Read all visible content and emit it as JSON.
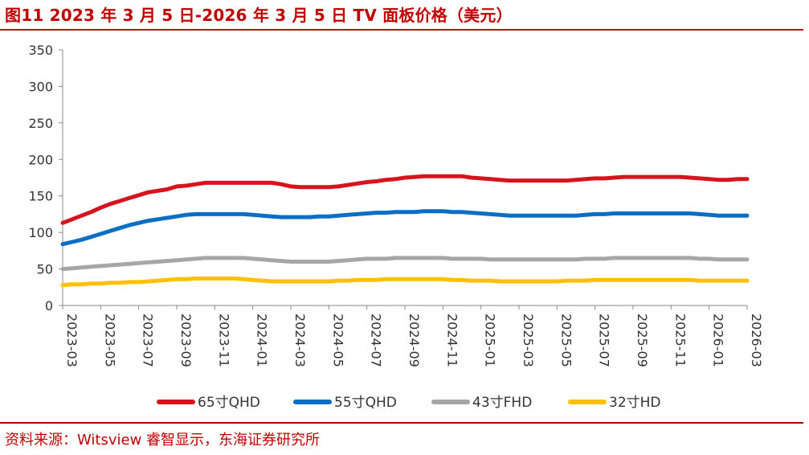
{
  "header": {
    "title": "图11  2023 年 3 月 5 日-2026 年 3 月 5 日 TV 面板价格（美元）"
  },
  "footer": {
    "source": "资料来源：Witsview 睿智显示，东海证券研究所"
  },
  "colors": {
    "accent": "#c00000",
    "axis": "#888888"
  },
  "chart_data": {
    "type": "line",
    "title": "2023 年 3 月 5 日-2026 年 3 月 5 日 TV 面板价格（美元）",
    "xlabel": "",
    "ylabel": "",
    "ylim": [
      0,
      350
    ],
    "yticks": [
      0,
      50,
      100,
      150,
      200,
      250,
      300,
      350
    ],
    "grid": false,
    "legend_position": "bottom",
    "x_tick_labels": [
      "2023-03",
      "2023-05",
      "2023-07",
      "2023-09",
      "2023-11",
      "2024-01",
      "2024-03",
      "2024-05",
      "2024-07",
      "2024-09",
      "2024-11",
      "2025-01",
      "2025-03",
      "2025-05",
      "2025-07",
      "2025-09",
      "2025-11",
      "2026-01",
      "2026-03"
    ],
    "x": [
      0,
      0.5,
      1,
      1.5,
      2,
      2.5,
      3,
      3.5,
      4,
      4.5,
      5,
      5.5,
      6,
      6.5,
      7,
      7.5,
      8,
      8.5,
      9,
      9.5,
      10,
      10.5,
      11,
      11.5,
      12,
      12.5,
      13,
      13.5,
      14,
      14.5,
      15,
      15.5,
      16,
      16.5,
      17,
      17.5,
      18,
      18.5,
      19,
      19.5,
      20,
      20.5,
      21,
      21.5,
      22,
      22.5,
      23,
      23.5,
      24,
      24.5,
      25,
      25.5,
      26,
      26.5,
      27,
      27.5,
      28,
      28.5,
      29,
      29.5,
      30,
      30.5,
      31,
      31.5,
      32,
      32.5,
      33,
      33.5,
      34,
      34.5,
      35,
      35.5,
      36
    ],
    "series": [
      {
        "name": "65寸QHD",
        "color": "#d7141e",
        "values": [
          113,
          118,
          123,
          128,
          134,
          139,
          143,
          147,
          151,
          155,
          157,
          159,
          163,
          164,
          166,
          168,
          168,
          168,
          168,
          168,
          168,
          168,
          168,
          166,
          163,
          162,
          162,
          162,
          162,
          163,
          165,
          167,
          169,
          170,
          172,
          173,
          175,
          176,
          177,
          177,
          177,
          177,
          177,
          175,
          174,
          173,
          172,
          171,
          171,
          171,
          171,
          171,
          171,
          171,
          172,
          173,
          174,
          174,
          175,
          176,
          176,
          176,
          176,
          176,
          176,
          176,
          175,
          174,
          173,
          172,
          172,
          173,
          173
        ]
      },
      {
        "name": "55寸QHD",
        "color": "#0a6fc4",
        "values": [
          84,
          87,
          90,
          94,
          98,
          102,
          106,
          110,
          113,
          116,
          118,
          120,
          122,
          124,
          125,
          125,
          125,
          125,
          125,
          125,
          124,
          123,
          122,
          121,
          121,
          121,
          121,
          122,
          122,
          123,
          124,
          125,
          126,
          127,
          127,
          128,
          128,
          128,
          129,
          129,
          129,
          128,
          128,
          127,
          126,
          125,
          124,
          123,
          123,
          123,
          123,
          123,
          123,
          123,
          123,
          124,
          125,
          125,
          126,
          126,
          126,
          126,
          126,
          126,
          126,
          126,
          126,
          125,
          124,
          123,
          123,
          123,
          123
        ]
      },
      {
        "name": "43寸FHD",
        "color": "#a6a6a6",
        "values": [
          50,
          51,
          52,
          53,
          54,
          55,
          56,
          57,
          58,
          59,
          60,
          61,
          62,
          63,
          64,
          65,
          65,
          65,
          65,
          65,
          64,
          63,
          62,
          61,
          60,
          60,
          60,
          60,
          60,
          61,
          62,
          63,
          64,
          64,
          64,
          65,
          65,
          65,
          65,
          65,
          65,
          64,
          64,
          64,
          64,
          63,
          63,
          63,
          63,
          63,
          63,
          63,
          63,
          63,
          63,
          64,
          64,
          64,
          65,
          65,
          65,
          65,
          65,
          65,
          65,
          65,
          65,
          64,
          64,
          63,
          63,
          63,
          63
        ]
      },
      {
        "name": "32寸HD",
        "color": "#ffc000",
        "values": [
          28,
          29,
          29,
          30,
          30,
          31,
          31,
          32,
          32,
          33,
          34,
          35,
          36,
          36,
          37,
          37,
          37,
          37,
          37,
          36,
          35,
          34,
          33,
          33,
          33,
          33,
          33,
          33,
          33,
          34,
          34,
          35,
          35,
          35,
          36,
          36,
          36,
          36,
          36,
          36,
          36,
          35,
          35,
          34,
          34,
          34,
          33,
          33,
          33,
          33,
          33,
          33,
          33,
          34,
          34,
          34,
          35,
          35,
          35,
          35,
          35,
          35,
          35,
          35,
          35,
          35,
          35,
          34,
          34,
          34,
          34,
          34,
          34
        ]
      }
    ]
  }
}
